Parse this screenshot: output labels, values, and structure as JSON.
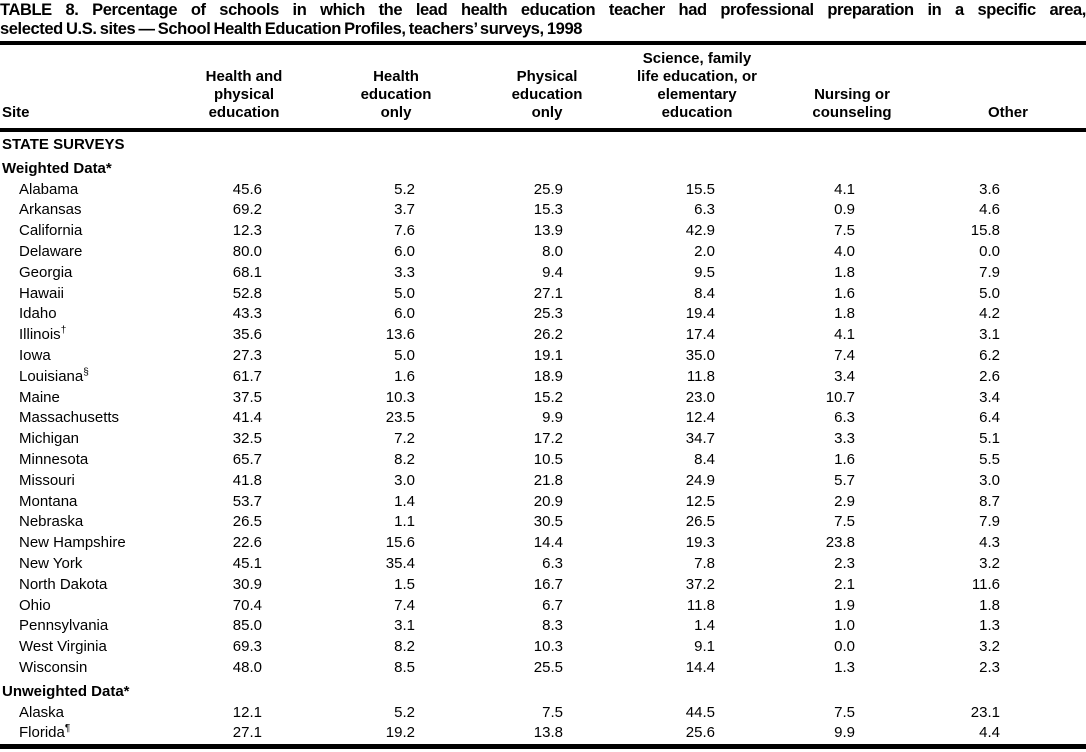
{
  "title": {
    "line1": "TABLE 8. Percentage of schools in which the lead health education teacher had professional preparation in a specific area,",
    "line2": "selected U.S. sites — School Health Education Profiles, teachers’ surveys, 1998"
  },
  "table": {
    "columns": [
      {
        "id": "site",
        "lines": [
          "Site"
        ]
      },
      {
        "id": "health-and-physical-education",
        "lines": [
          "Health and",
          "physical",
          "education"
        ]
      },
      {
        "id": "health-education-only",
        "lines": [
          "Health",
          "education",
          "only"
        ]
      },
      {
        "id": "physical-education-only",
        "lines": [
          "Physical",
          "education",
          "only"
        ]
      },
      {
        "id": "science-family-life-or-elementary-education",
        "lines": [
          "Science, family",
          "life education, or",
          "elementary",
          "education"
        ]
      },
      {
        "id": "nursing-or-counseling",
        "lines": [
          "Nursing or",
          "counseling"
        ]
      },
      {
        "id": "other",
        "lines": [
          "Other"
        ]
      }
    ],
    "sections": [
      {
        "header": "STATE SURVEYS",
        "rows": []
      },
      {
        "header": "Weighted Data*",
        "rows": [
          {
            "site": "Alabama",
            "sup": "",
            "values": [
              "45.6",
              "5.2",
              "25.9",
              "15.5",
              "4.1",
              "3.6"
            ]
          },
          {
            "site": "Arkansas",
            "sup": "",
            "values": [
              "69.2",
              "3.7",
              "15.3",
              "6.3",
              "0.9",
              "4.6"
            ]
          },
          {
            "site": "California",
            "sup": "",
            "values": [
              "12.3",
              "7.6",
              "13.9",
              "42.9",
              "7.5",
              "15.8"
            ]
          },
          {
            "site": "Delaware",
            "sup": "",
            "values": [
              "80.0",
              "6.0",
              "8.0",
              "2.0",
              "4.0",
              "0.0"
            ]
          },
          {
            "site": "Georgia",
            "sup": "",
            "values": [
              "68.1",
              "3.3",
              "9.4",
              "9.5",
              "1.8",
              "7.9"
            ]
          },
          {
            "site": "Hawaii",
            "sup": "",
            "values": [
              "52.8",
              "5.0",
              "27.1",
              "8.4",
              "1.6",
              "5.0"
            ]
          },
          {
            "site": "Idaho",
            "sup": "",
            "values": [
              "43.3",
              "6.0",
              "25.3",
              "19.4",
              "1.8",
              "4.2"
            ]
          },
          {
            "site": "Illinois",
            "sup": "†",
            "values": [
              "35.6",
              "13.6",
              "26.2",
              "17.4",
              "4.1",
              "3.1"
            ]
          },
          {
            "site": "Iowa",
            "sup": "",
            "values": [
              "27.3",
              "5.0",
              "19.1",
              "35.0",
              "7.4",
              "6.2"
            ]
          },
          {
            "site": "Louisiana",
            "sup": "§",
            "values": [
              "61.7",
              "1.6",
              "18.9",
              "11.8",
              "3.4",
              "2.6"
            ]
          },
          {
            "site": "Maine",
            "sup": "",
            "values": [
              "37.5",
              "10.3",
              "15.2",
              "23.0",
              "10.7",
              "3.4"
            ]
          },
          {
            "site": "Massachusetts",
            "sup": "",
            "values": [
              "41.4",
              "23.5",
              "9.9",
              "12.4",
              "6.3",
              "6.4"
            ]
          },
          {
            "site": "Michigan",
            "sup": "",
            "values": [
              "32.5",
              "7.2",
              "17.2",
              "34.7",
              "3.3",
              "5.1"
            ]
          },
          {
            "site": "Minnesota",
            "sup": "",
            "values": [
              "65.7",
              "8.2",
              "10.5",
              "8.4",
              "1.6",
              "5.5"
            ]
          },
          {
            "site": "Missouri",
            "sup": "",
            "values": [
              "41.8",
              "3.0",
              "21.8",
              "24.9",
              "5.7",
              "3.0"
            ]
          },
          {
            "site": "Montana",
            "sup": "",
            "values": [
              "53.7",
              "1.4",
              "20.9",
              "12.5",
              "2.9",
              "8.7"
            ]
          },
          {
            "site": "Nebraska",
            "sup": "",
            "values": [
              "26.5",
              "1.1",
              "30.5",
              "26.5",
              "7.5",
              "7.9"
            ]
          },
          {
            "site": "New Hampshire",
            "sup": "",
            "values": [
              "22.6",
              "15.6",
              "14.4",
              "19.3",
              "23.8",
              "4.3"
            ]
          },
          {
            "site": "New York",
            "sup": "",
            "values": [
              "45.1",
              "35.4",
              "6.3",
              "7.8",
              "2.3",
              "3.2"
            ]
          },
          {
            "site": "North Dakota",
            "sup": "",
            "values": [
              "30.9",
              "1.5",
              "16.7",
              "37.2",
              "2.1",
              "11.6"
            ]
          },
          {
            "site": "Ohio",
            "sup": "",
            "values": [
              "70.4",
              "7.4",
              "6.7",
              "11.8",
              "1.9",
              "1.8"
            ]
          },
          {
            "site": "Pennsylvania",
            "sup": "",
            "values": [
              "85.0",
              "3.1",
              "8.3",
              "1.4",
              "1.0",
              "1.3"
            ]
          },
          {
            "site": "West Virginia",
            "sup": "",
            "values": [
              "69.3",
              "8.2",
              "10.3",
              "9.1",
              "0.0",
              "3.2"
            ]
          },
          {
            "site": "Wisconsin",
            "sup": "",
            "values": [
              "48.0",
              "8.5",
              "25.5",
              "14.4",
              "1.3",
              "2.3"
            ]
          }
        ]
      },
      {
        "header": "Unweighted Data*",
        "rows": [
          {
            "site": "Alaska",
            "sup": "",
            "values": [
              "12.1",
              "5.2",
              "7.5",
              "44.5",
              "7.5",
              "23.1"
            ]
          },
          {
            "site": "Florida",
            "sup": "¶",
            "values": [
              "27.1",
              "19.2",
              "13.8",
              "25.6",
              "9.9",
              "4.4"
            ]
          }
        ]
      }
    ]
  }
}
